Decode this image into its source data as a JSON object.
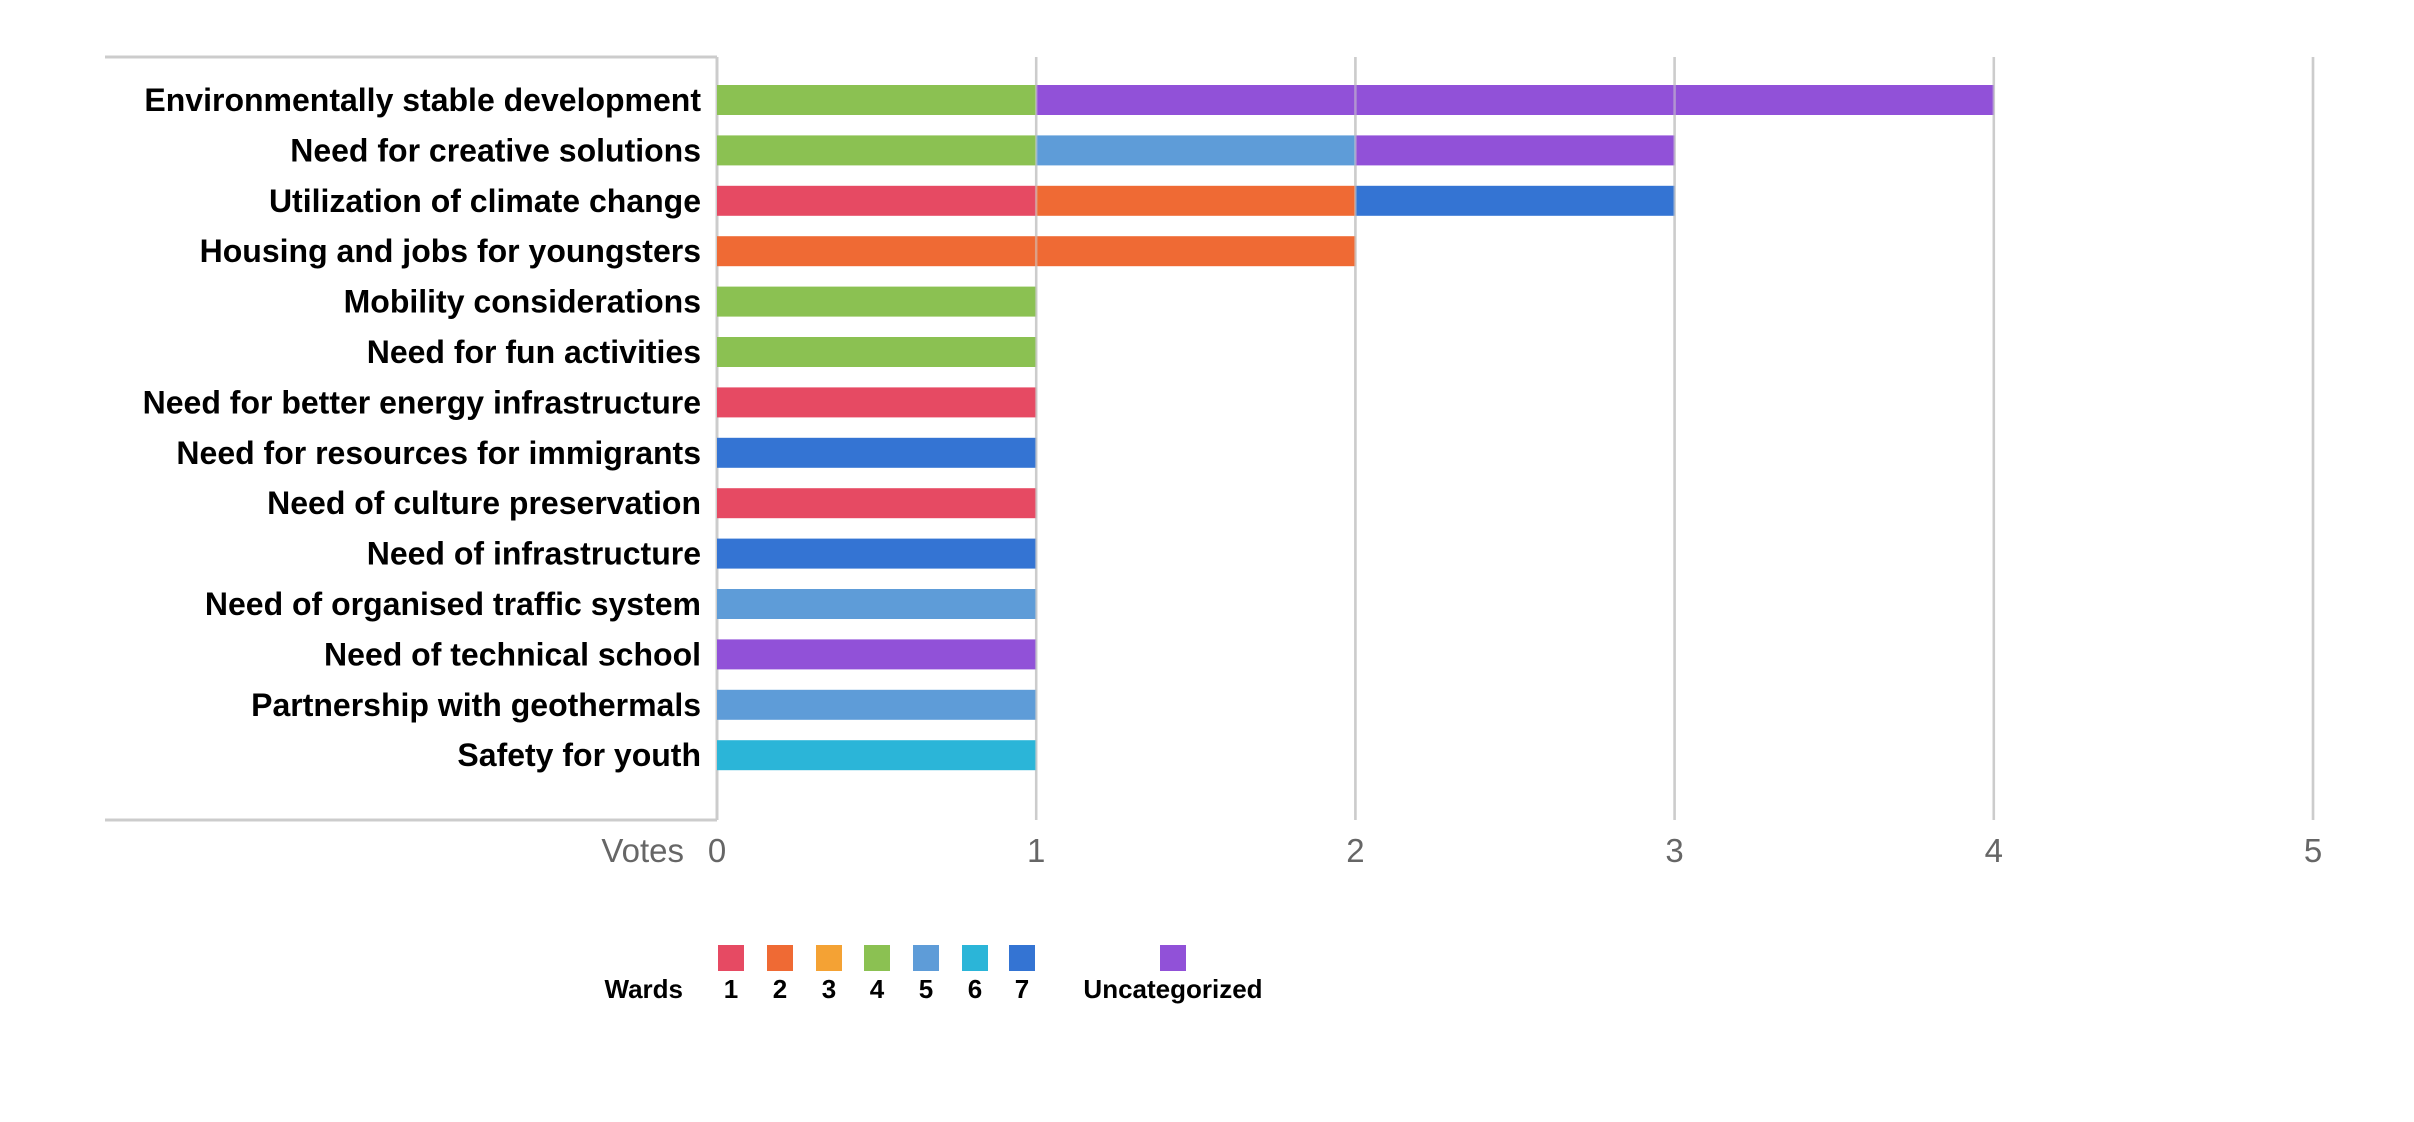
{
  "chart_data": {
    "type": "bar",
    "orientation": "horizontal",
    "stacked": true,
    "categories": [
      "Environmentally stable development",
      "Need for creative solutions",
      "Utilization of climate change",
      "Housing and jobs for youngsters",
      "Mobility considerations",
      "Need for fun activities",
      "Need for better energy infrastructure",
      "Need for resources for immigrants",
      "Need of culture preservation",
      "Need of infrastructure",
      "Need of organised traffic system",
      "Need of technical school",
      "Partnership with geothermals",
      "Safety for youth"
    ],
    "series": [
      {
        "name": "1",
        "color": "#e64a63",
        "values": [
          0,
          0,
          1,
          0,
          0,
          0,
          1,
          0,
          1,
          0,
          0,
          0,
          0,
          0
        ]
      },
      {
        "name": "2",
        "color": "#ef6a34",
        "values": [
          0,
          0,
          1,
          2,
          0,
          0,
          0,
          0,
          0,
          0,
          0,
          0,
          0,
          0
        ]
      },
      {
        "name": "3",
        "color": "#f4a234",
        "values": [
          0,
          0,
          0,
          0,
          0,
          0,
          0,
          0,
          0,
          0,
          0,
          0,
          0,
          0
        ]
      },
      {
        "name": "4",
        "color": "#8bc152",
        "values": [
          1,
          1,
          0,
          0,
          1,
          1,
          0,
          0,
          0,
          0,
          0,
          0,
          0,
          0
        ]
      },
      {
        "name": "5",
        "color": "#5e9cd8",
        "values": [
          0,
          1,
          0,
          0,
          0,
          0,
          0,
          0,
          0,
          0,
          1,
          0,
          1,
          0
        ]
      },
      {
        "name": "6",
        "color": "#2bb5d8",
        "values": [
          0,
          0,
          0,
          0,
          0,
          0,
          0,
          0,
          0,
          0,
          0,
          0,
          0,
          1
        ]
      },
      {
        "name": "7",
        "color": "#3474d3",
        "values": [
          0,
          0,
          1,
          0,
          0,
          0,
          0,
          1,
          0,
          1,
          0,
          0,
          0,
          0
        ]
      },
      {
        "name": "Uncategorized",
        "color": "#9151d8",
        "values": [
          3,
          1,
          0,
          0,
          0,
          0,
          0,
          0,
          0,
          0,
          0,
          1,
          0,
          0
        ]
      }
    ],
    "xlabel": "Votes",
    "xlim": [
      0,
      5
    ],
    "xticks": [
      "0",
      "1",
      "2",
      "3",
      "4",
      "5"
    ],
    "grid": true,
    "legend": {
      "title": "Wards",
      "position": "bottom"
    }
  }
}
